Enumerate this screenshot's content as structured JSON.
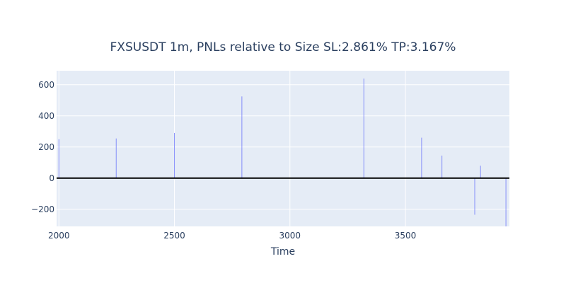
{
  "chart_data": {
    "type": "bar",
    "title": "FXSUSDT 1m, PNLs relative to Size  SL:2.861%   TP:3.167%",
    "xlabel": "Time",
    "ylabel": "",
    "xlim": [
      1990,
      3950
    ],
    "ylim": [
      -310,
      690
    ],
    "x_ticks": [
      2000,
      2500,
      3000,
      3500
    ],
    "y_ticks": [
      -200,
      0,
      200,
      400,
      600
    ],
    "grid": true,
    "colors": {
      "plot_bg": "#e5ecf6",
      "grid": "#ffffff",
      "bar": "#636efa",
      "zero_line": "#000000",
      "text": "#2a3f5f"
    },
    "series": [
      {
        "x": [
          2000,
          2248,
          2500,
          2792,
          3320,
          3570,
          3658,
          3800,
          3825,
          3935
        ],
        "values": [
          250,
          255,
          290,
          525,
          640,
          260,
          145,
          -235,
          80,
          -310
        ]
      }
    ]
  }
}
